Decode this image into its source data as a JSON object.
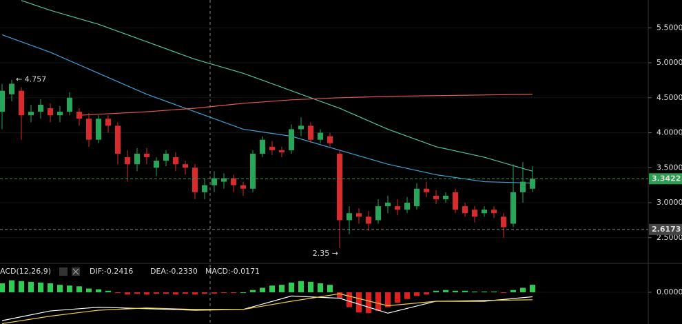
{
  "chart_data": [
    {
      "type": "candlestick",
      "up_color": "#26a65b",
      "down_color": "#d92b2b",
      "open": [
        4.3,
        4.55,
        4.6,
        4.25,
        4.3,
        4.35,
        4.25,
        4.3,
        4.3,
        4.2,
        3.9,
        4.2,
        4.1,
        3.65,
        3.55,
        3.7,
        3.5,
        3.6,
        3.65,
        3.55,
        3.5,
        3.15,
        3.25,
        3.3,
        3.35,
        3.25,
        3.2,
        3.7,
        3.8,
        3.75,
        3.75,
        4.05,
        4.1,
        3.9,
        3.95,
        3.7,
        2.75,
        2.85,
        2.8,
        2.75,
        2.95,
        2.95,
        2.9,
        2.95,
        3.2,
        3.1,
        3.05,
        3.15,
        2.95,
        2.9,
        2.85,
        2.9,
        2.8,
        2.7,
        3.15,
        3.2
      ],
      "high": [
        4.7,
        4.757,
        4.65,
        4.4,
        4.48,
        4.42,
        4.38,
        4.58,
        4.35,
        4.28,
        4.25,
        4.25,
        4.15,
        3.75,
        3.78,
        3.78,
        3.65,
        3.75,
        3.72,
        3.6,
        3.55,
        3.35,
        3.45,
        3.42,
        3.4,
        3.3,
        3.75,
        3.95,
        3.88,
        3.8,
        4.12,
        4.22,
        4.15,
        4.05,
        4.0,
        3.75,
        2.95,
        2.92,
        2.88,
        3.05,
        3.1,
        3.05,
        3.08,
        3.28,
        3.3,
        3.18,
        3.15,
        3.2,
        3.0,
        2.95,
        2.95,
        2.95,
        2.85,
        3.55,
        3.58,
        3.52
      ],
      "low": [
        4.05,
        4.45,
        3.9,
        4.15,
        4.2,
        4.15,
        4.15,
        4.25,
        4.1,
        3.8,
        3.85,
        4.0,
        3.55,
        3.3,
        3.45,
        3.55,
        3.38,
        3.52,
        3.45,
        3.4,
        3.05,
        3.05,
        3.15,
        3.2,
        3.15,
        3.1,
        3.15,
        3.65,
        3.68,
        3.65,
        3.7,
        3.95,
        3.85,
        3.85,
        3.8,
        2.35,
        2.55,
        2.7,
        2.6,
        2.7,
        2.85,
        2.82,
        2.85,
        2.9,
        3.08,
        2.98,
        3.0,
        2.85,
        2.8,
        2.72,
        2.8,
        2.78,
        2.5,
        2.65,
        3.0,
        3.15
      ],
      "close": [
        4.6,
        4.7,
        4.25,
        4.3,
        4.4,
        4.25,
        4.3,
        4.5,
        4.2,
        3.9,
        4.2,
        4.1,
        3.7,
        3.55,
        3.7,
        3.65,
        3.6,
        3.7,
        3.55,
        3.5,
        3.15,
        3.25,
        3.35,
        3.35,
        3.25,
        3.2,
        3.7,
        3.9,
        3.75,
        3.72,
        4.05,
        4.1,
        3.9,
        4.0,
        3.85,
        2.75,
        2.85,
        2.8,
        2.7,
        2.95,
        3.0,
        2.9,
        3.0,
        3.2,
        3.15,
        3.05,
        3.1,
        2.9,
        2.85,
        2.8,
        2.9,
        2.85,
        2.65,
        3.15,
        3.3,
        3.3422
      ],
      "overlays": [
        {
          "color": "#4fc3a0",
          "x": [
            2,
            5,
            10,
            15,
            20,
            25,
            30,
            35,
            40,
            45,
            50,
            55
          ],
          "values": [
            5.89,
            5.75,
            5.55,
            5.3,
            5.05,
            4.85,
            4.6,
            4.35,
            4.05,
            3.8,
            3.65,
            3.45
          ]
        },
        {
          "color": "#3ba3d8",
          "x": [
            0,
            5,
            10,
            15,
            20,
            25,
            30,
            35,
            40,
            45,
            50,
            55
          ],
          "values": [
            5.4,
            5.15,
            4.85,
            4.55,
            4.3,
            4.05,
            3.95,
            3.75,
            3.55,
            3.4,
            3.3,
            3.28
          ]
        },
        {
          "color": "#e0554f",
          "x": [
            8,
            15,
            20,
            25,
            30,
            35,
            40,
            45,
            50,
            55
          ],
          "values": [
            4.25,
            4.3,
            4.35,
            4.42,
            4.47,
            4.5,
            4.52,
            4.53,
            4.54,
            4.55
          ]
        }
      ],
      "ylim": [
        2.153,
        5.897
      ],
      "yticks": [
        {
          "value": 2.5,
          "label": "2.5000"
        },
        {
          "value": 3.0,
          "label": "3.0000"
        },
        {
          "value": 3.5,
          "label": "3.5000"
        },
        {
          "value": 4.0,
          "label": "4.0000"
        },
        {
          "value": 4.5,
          "label": "4.5000"
        },
        {
          "value": 5.0,
          "label": "5.0000"
        },
        {
          "value": 5.5,
          "label": "5.5000"
        }
      ],
      "price_lines": [
        {
          "value": 3.3422,
          "color": "#2e9e52",
          "box_color": "#2e9e52"
        },
        {
          "value": 2.6173,
          "color": "#888888",
          "box_color": "#444444"
        }
      ],
      "annotations": [
        {
          "x": 1,
          "value": 4.757,
          "label": "← 4.757"
        },
        {
          "x": 35,
          "value": 2.35,
          "label": "2.35 →"
        }
      ]
    },
    {
      "type": "macd",
      "indicator": "ACD(12,26,9)",
      "labels": [
        {
          "label": "DIF:-0.2416",
          "color": "#ffffff"
        },
        {
          "label": "DEA:-0.2330",
          "color": "#f0d040"
        },
        {
          "label": "MACD:-0.0171",
          "color": "#e03030"
        }
      ],
      "up_color": "#2ecc52",
      "down_color": "#e02020",
      "histogram": [
        0.12,
        0.16,
        0.15,
        0.14,
        0.13,
        0.12,
        0.1,
        0.09,
        0.08,
        0.05,
        0.04,
        0.02,
        -0.01,
        -0.03,
        -0.02,
        -0.03,
        -0.02,
        -0.02,
        -0.03,
        -0.02,
        -0.03,
        -0.02,
        -0.017,
        -0.01,
        -0.01,
        0.0,
        0.03,
        0.06,
        0.09,
        0.1,
        0.13,
        0.15,
        0.14,
        0.12,
        0.1,
        -0.08,
        -0.2,
        -0.27,
        -0.28,
        -0.25,
        -0.2,
        -0.14,
        -0.09,
        -0.05,
        -0.03,
        0.02,
        0.03,
        0.02,
        0.02,
        0.01,
        0.01,
        0.01,
        -0.01,
        0.03,
        0.06,
        0.1
      ],
      "series": [
        {
          "color": "#ffffff",
          "x": [
            0,
            5,
            10,
            15,
            20,
            25,
            30,
            35,
            40,
            45,
            50,
            55
          ],
          "values": [
            -0.38,
            -0.25,
            -0.2,
            -0.22,
            -0.24,
            -0.23,
            -0.05,
            -0.08,
            -0.28,
            -0.12,
            -0.12,
            -0.06
          ]
        },
        {
          "color": "#f0d040",
          "x": [
            0,
            5,
            10,
            15,
            20,
            25,
            30,
            35,
            40,
            45,
            50,
            55
          ],
          "values": [
            -0.42,
            -0.32,
            -0.24,
            -0.21,
            -0.23,
            -0.23,
            -0.12,
            -0.02,
            -0.18,
            -0.12,
            -0.11,
            -0.1
          ]
        }
      ],
      "ylim": [
        -0.425,
        0.36
      ],
      "yticks": [
        {
          "value": 0,
          "label": "0.0000"
        }
      ]
    }
  ]
}
